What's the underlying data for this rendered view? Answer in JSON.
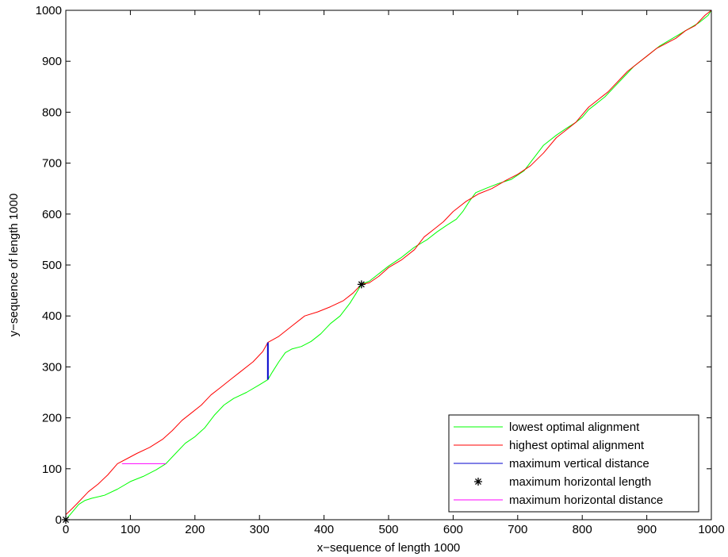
{
  "chart_data": {
    "type": "line",
    "xlabel": "x−sequence of length 1000",
    "ylabel": "y−sequence of length 1000",
    "xlim": [
      0,
      1000
    ],
    "ylim": [
      0,
      1000
    ],
    "xticks": [
      0,
      100,
      200,
      300,
      400,
      500,
      600,
      700,
      800,
      900,
      1000
    ],
    "yticks": [
      0,
      100,
      200,
      300,
      400,
      500,
      600,
      700,
      800,
      900,
      1000
    ],
    "grid": false,
    "legend_position": "bottom-right",
    "series": [
      {
        "name": "lowest optimal alignment",
        "color": "#00ff00",
        "style": "line",
        "points": [
          [
            0,
            0
          ],
          [
            10,
            15
          ],
          [
            20,
            30
          ],
          [
            30,
            38
          ],
          [
            40,
            42
          ],
          [
            60,
            48
          ],
          [
            80,
            60
          ],
          [
            100,
            75
          ],
          [
            120,
            85
          ],
          [
            140,
            98
          ],
          [
            155,
            110
          ],
          [
            170,
            130
          ],
          [
            185,
            150
          ],
          [
            200,
            163
          ],
          [
            215,
            180
          ],
          [
            230,
            205
          ],
          [
            245,
            225
          ],
          [
            260,
            238
          ],
          [
            280,
            250
          ],
          [
            300,
            265
          ],
          [
            313,
            275
          ],
          [
            320,
            290
          ],
          [
            330,
            310
          ],
          [
            340,
            328
          ],
          [
            350,
            335
          ],
          [
            365,
            340
          ],
          [
            380,
            350
          ],
          [
            395,
            365
          ],
          [
            410,
            385
          ],
          [
            425,
            400
          ],
          [
            440,
            425
          ],
          [
            450,
            445
          ],
          [
            458,
            462
          ],
          [
            470,
            468
          ],
          [
            480,
            478
          ],
          [
            490,
            488
          ],
          [
            500,
            498
          ],
          [
            520,
            515
          ],
          [
            540,
            535
          ],
          [
            560,
            550
          ],
          [
            575,
            565
          ],
          [
            590,
            578
          ],
          [
            605,
            590
          ],
          [
            615,
            605
          ],
          [
            625,
            625
          ],
          [
            635,
            642
          ],
          [
            650,
            650
          ],
          [
            670,
            660
          ],
          [
            690,
            668
          ],
          [
            710,
            685
          ],
          [
            725,
            710
          ],
          [
            740,
            735
          ],
          [
            760,
            755
          ],
          [
            775,
            768
          ],
          [
            790,
            780
          ],
          [
            800,
            790
          ],
          [
            810,
            805
          ],
          [
            820,
            815
          ],
          [
            835,
            830
          ],
          [
            850,
            850
          ],
          [
            865,
            870
          ],
          [
            880,
            890
          ],
          [
            900,
            910
          ],
          [
            920,
            930
          ],
          [
            940,
            945
          ],
          [
            960,
            960
          ],
          [
            980,
            975
          ],
          [
            995,
            990
          ],
          [
            1000,
            1000
          ]
        ]
      },
      {
        "name": "highest optimal alignment",
        "color": "#ff0000",
        "style": "line",
        "points": [
          [
            0,
            10
          ],
          [
            10,
            22
          ],
          [
            20,
            35
          ],
          [
            35,
            55
          ],
          [
            50,
            70
          ],
          [
            65,
            88
          ],
          [
            80,
            110
          ],
          [
            95,
            120
          ],
          [
            110,
            130
          ],
          [
            130,
            142
          ],
          [
            150,
            158
          ],
          [
            165,
            175
          ],
          [
            180,
            195
          ],
          [
            195,
            210
          ],
          [
            210,
            225
          ],
          [
            225,
            245
          ],
          [
            240,
            260
          ],
          [
            255,
            275
          ],
          [
            270,
            290
          ],
          [
            290,
            310
          ],
          [
            305,
            330
          ],
          [
            313,
            348
          ],
          [
            330,
            360
          ],
          [
            350,
            380
          ],
          [
            370,
            400
          ],
          [
            390,
            408
          ],
          [
            410,
            418
          ],
          [
            430,
            430
          ],
          [
            445,
            445
          ],
          [
            458,
            462
          ],
          [
            470,
            465
          ],
          [
            485,
            478
          ],
          [
            500,
            495
          ],
          [
            520,
            510
          ],
          [
            540,
            530
          ],
          [
            555,
            555
          ],
          [
            570,
            570
          ],
          [
            585,
            585
          ],
          [
            600,
            605
          ],
          [
            620,
            625
          ],
          [
            640,
            640
          ],
          [
            660,
            650
          ],
          [
            680,
            665
          ],
          [
            700,
            678
          ],
          [
            720,
            695
          ],
          [
            740,
            720
          ],
          [
            760,
            750
          ],
          [
            775,
            765
          ],
          [
            790,
            780
          ],
          [
            800,
            795
          ],
          [
            810,
            810
          ],
          [
            825,
            825
          ],
          [
            840,
            840
          ],
          [
            855,
            860
          ],
          [
            870,
            880
          ],
          [
            885,
            895
          ],
          [
            900,
            910
          ],
          [
            915,
            925
          ],
          [
            930,
            935
          ],
          [
            945,
            945
          ],
          [
            960,
            960
          ],
          [
            975,
            970
          ],
          [
            990,
            990
          ],
          [
            1000,
            1000
          ]
        ]
      },
      {
        "name": "maximum vertical distance",
        "color": "#0000cc",
        "style": "line",
        "points": [
          [
            313,
            275
          ],
          [
            313,
            348
          ]
        ]
      },
      {
        "name": "maximum horizontal length",
        "color": "#000000",
        "style": "marker-star",
        "points": [
          [
            0,
            0
          ],
          [
            458,
            462
          ]
        ]
      },
      {
        "name": "maximum horizontal distance",
        "color": "#ff00ff",
        "style": "line",
        "points": [
          [
            87,
            110
          ],
          [
            155,
            110
          ]
        ]
      }
    ]
  }
}
